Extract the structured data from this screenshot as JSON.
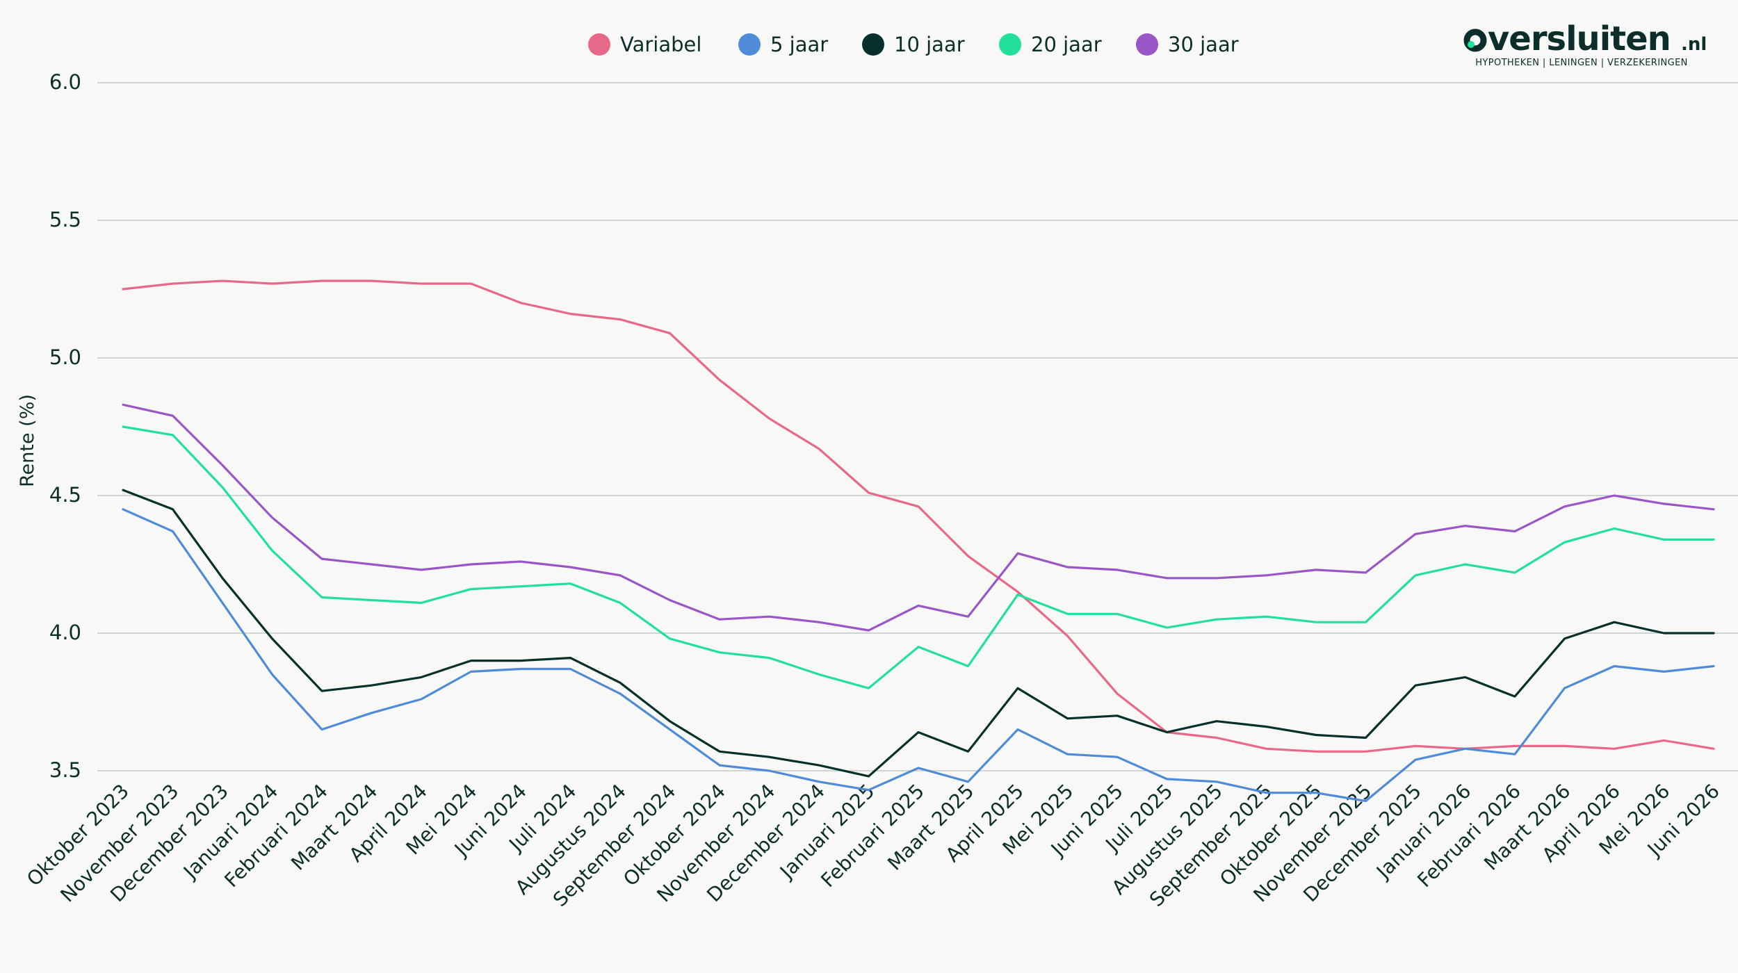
{
  "logo": {
    "brand_main": "versluiten",
    "brand_suffix": ".nl",
    "tagline": "HYPOTHEKEN | LENINGEN | VERZEKERINGEN",
    "color": "#0b2e2a",
    "accent": "#1ee39a"
  },
  "chart_data": {
    "type": "line",
    "title": "",
    "xlabel": "",
    "ylabel": "Rente (%)",
    "ylim": [
      3.4,
      6.0
    ],
    "yticks": [
      "3.5",
      "4.0",
      "4.5",
      "5.0",
      "5.5",
      "6.0"
    ],
    "ytick_values": [
      3.5,
      4.0,
      4.5,
      5.0,
      5.5,
      6.0
    ],
    "grid": true,
    "legend_position": "top-center",
    "categories": [
      "Oktober 2023",
      "November 2023",
      "December 2023",
      "Januari 2024",
      "Februari 2024",
      "Maart 2024",
      "April 2024",
      "Mei 2024",
      "Juni 2024",
      "Juli 2024",
      "Augustus 2024",
      "September 2024",
      "Oktober 2024",
      "November 2024",
      "December 2024",
      "Januari 2025",
      "Februari 2025",
      "Maart 2025",
      "April 2025",
      "Mei 2025",
      "Juni 2025",
      "Juli 2025",
      "Augustus 2025",
      "September 2025",
      "Oktober 2025",
      "November 2025",
      "December 2025",
      "Januari 2026",
      "Februari 2026",
      "Maart 2026",
      "April 2026",
      "Mei 2026",
      "Juni 2026"
    ],
    "series": [
      {
        "name": "Variabel",
        "color": "#e8688a",
        "values": [
          5.25,
          5.27,
          5.28,
          5.27,
          5.28,
          5.28,
          5.27,
          5.27,
          5.2,
          5.16,
          5.14,
          5.09,
          4.92,
          4.78,
          4.67,
          4.51,
          4.46,
          4.28,
          4.15,
          3.99,
          3.78,
          3.64,
          3.62,
          3.58,
          3.57,
          3.57,
          3.59,
          3.58,
          3.59,
          3.59,
          3.58,
          3.61,
          3.58
        ]
      },
      {
        "name": "5 jaar",
        "color": "#4f8bd6",
        "values": [
          4.45,
          4.37,
          4.11,
          3.85,
          3.65,
          3.71,
          3.76,
          3.86,
          3.87,
          3.87,
          3.78,
          3.65,
          3.52,
          3.5,
          3.46,
          3.43,
          3.51,
          3.46,
          3.65,
          3.56,
          3.55,
          3.47,
          3.46,
          3.42,
          3.42,
          3.39,
          3.54,
          3.58,
          3.56,
          3.8,
          3.88,
          3.86,
          3.88
        ]
      },
      {
        "name": "10 jaar",
        "color": "#06302c",
        "values": [
          4.52,
          4.45,
          4.2,
          3.98,
          3.79,
          3.81,
          3.84,
          3.9,
          3.9,
          3.91,
          3.82,
          3.68,
          3.57,
          3.55,
          3.52,
          3.48,
          3.64,
          3.57,
          3.8,
          3.69,
          3.7,
          3.64,
          3.68,
          3.66,
          3.63,
          3.62,
          3.81,
          3.84,
          3.77,
          3.98,
          4.04,
          4.0,
          4.0
        ]
      },
      {
        "name": "20 jaar",
        "color": "#22e09c",
        "values": [
          4.75,
          4.72,
          4.53,
          4.3,
          4.13,
          4.12,
          4.11,
          4.16,
          4.17,
          4.18,
          4.11,
          3.98,
          3.93,
          3.91,
          3.85,
          3.8,
          3.95,
          3.88,
          4.14,
          4.07,
          4.07,
          4.02,
          4.05,
          4.06,
          4.04,
          4.04,
          4.21,
          4.25,
          4.22,
          4.33,
          4.38,
          4.34,
          4.34
        ]
      },
      {
        "name": "30 jaar",
        "color": "#9a55c6",
        "values": [
          4.83,
          4.79,
          4.61,
          4.42,
          4.27,
          4.25,
          4.23,
          4.25,
          4.26,
          4.24,
          4.21,
          4.12,
          4.05,
          4.06,
          4.04,
          4.01,
          4.1,
          4.06,
          4.29,
          4.24,
          4.23,
          4.2,
          4.2,
          4.21,
          4.23,
          4.22,
          4.36,
          4.39,
          4.37,
          4.46,
          4.5,
          4.47,
          4.45
        ]
      }
    ]
  }
}
